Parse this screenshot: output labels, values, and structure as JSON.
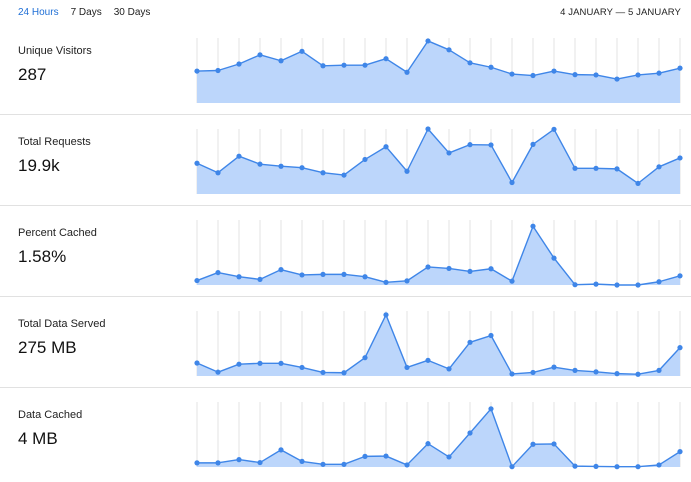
{
  "tabs": [
    {
      "label": "24 Hours",
      "active": true
    },
    {
      "label": "7 Days",
      "active": false
    },
    {
      "label": "30 Days",
      "active": false
    }
  ],
  "date_range": "4 JANUARY — 5 JANUARY",
  "colors": {
    "line": "#3f86e8",
    "fill": "#bcd6fb",
    "grid": "#e3e3e3",
    "tab_active": "#1f6fd6"
  },
  "metrics": [
    {
      "label": "Unique Visitors",
      "value": "287"
    },
    {
      "label": "Total Requests",
      "value": "19.9k"
    },
    {
      "label": "Percent Cached",
      "value": "1.58%"
    },
    {
      "label": "Total Data Served",
      "value": "275 MB"
    },
    {
      "label": "Data Cached",
      "value": "4 MB"
    }
  ],
  "chart_data": [
    {
      "type": "area",
      "title": "Unique Visitors",
      "values": [
        10.8,
        11.0,
        13.2,
        16.3,
        14.3,
        17.5,
        12.6,
        12.8,
        12.8,
        15.0,
        10.4,
        21.0,
        18.0,
        13.6,
        12.1,
        9.8,
        9.3,
        10.8,
        9.6,
        9.5,
        8.1,
        9.5,
        10.1,
        11.8
      ],
      "ylim": [
        0,
        22
      ],
      "grid": true
    },
    {
      "type": "area",
      "title": "Total Requests",
      "values": [
        10.4,
        7.2,
        12.8,
        10.1,
        9.4,
        8.9,
        7.2,
        6.4,
        11.7,
        16.0,
        7.7,
        22.0,
        13.9,
        16.7,
        16.6,
        3.9,
        16.8,
        21.9,
        8.7,
        8.7,
        8.5,
        3.6,
        9.2,
        12.2
      ],
      "ylim": [
        0,
        22
      ],
      "grid": true
    },
    {
      "type": "area",
      "title": "Percent Cached",
      "values": [
        1.5,
        4.2,
        2.8,
        1.9,
        5.2,
        3.4,
        3.6,
        3.6,
        2.8,
        0.9,
        1.4,
        6.1,
        5.6,
        4.6,
        5.5,
        1.3,
        19.9,
        9.1,
        0.1,
        0.3,
        0.0,
        0.0,
        1.1,
        3.1
      ],
      "ylim": [
        0,
        22
      ],
      "grid": true
    },
    {
      "type": "area",
      "title": "Total Data Served",
      "values": [
        4.4,
        1.3,
        4.0,
        4.3,
        4.3,
        2.9,
        1.2,
        1.1,
        6.2,
        20.7,
        2.9,
        5.3,
        2.4,
        11.4,
        13.7,
        0.7,
        1.2,
        3.0,
        1.9,
        1.4,
        0.8,
        0.6,
        1.9,
        9.6
      ],
      "ylim": [
        0,
        22
      ],
      "grid": true
    },
    {
      "type": "area",
      "title": "Data Cached",
      "values": [
        1.4,
        1.4,
        2.5,
        1.5,
        5.8,
        1.9,
        0.9,
        0.9,
        3.6,
        3.7,
        0.7,
        7.9,
        3.4,
        11.5,
        19.7,
        0.1,
        7.7,
        7.8,
        0.3,
        0.2,
        0.1,
        0.1,
        0.7,
        5.2
      ],
      "ylim": [
        0,
        22
      ],
      "grid": true
    }
  ]
}
